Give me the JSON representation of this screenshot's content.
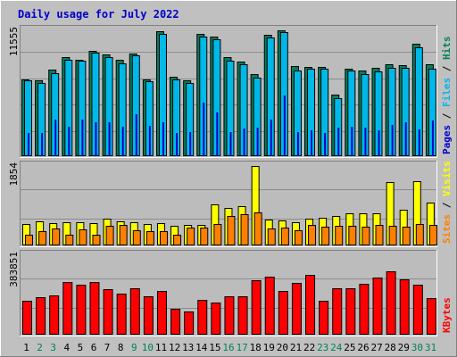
{
  "chart_data": {
    "title": "Daily usage for July 2022",
    "categories": [
      "1",
      "2",
      "3",
      "4",
      "5",
      "6",
      "7",
      "8",
      "9",
      "10",
      "11",
      "12",
      "13",
      "14",
      "15",
      "16",
      "17",
      "18",
      "19",
      "20",
      "21",
      "22",
      "23",
      "24",
      "25",
      "26",
      "27",
      "28",
      "29",
      "30",
      "31"
    ],
    "weekend_days": [
      "2",
      "3",
      "9",
      "10",
      "16",
      "17",
      "23",
      "24",
      "30",
      "31"
    ],
    "colors": {
      "background": "#c0c0c0",
      "plot": "#bcbcbc",
      "title": "#0000cc",
      "hits": "#00805c",
      "files": "#00b8e8",
      "pages": "#0000cc",
      "visits": "#ffff00",
      "sites": "#ff8000",
      "kbytes": "#ff0000",
      "weekday_label": "#000000",
      "weekend_label": "#00805c"
    },
    "panels": [
      {
        "type": "bar",
        "axis_label": "11555",
        "ymax": 11555,
        "legend": [
          "Pages",
          "Files",
          "Hits"
        ],
        "series": [
          {
            "name": "Hits",
            "values": [
              7060,
              6990,
              7990,
              9120,
              8830,
              9660,
              9350,
              8850,
              9460,
              7020,
              11480,
              7320,
              6950,
              11260,
              11010,
              9090,
              8700,
              7520,
              11120,
              11530,
              8240,
              8200,
              8180,
              5620,
              8050,
              7850,
              8110,
              8400,
              8330,
              10290,
              8410
            ]
          },
          {
            "name": "Files",
            "values": [
              6990,
              6700,
              7600,
              8870,
              8750,
              9470,
              9070,
              8530,
              9280,
              6850,
              11200,
              7050,
              6740,
              10990,
              10730,
              8800,
              8470,
              7180,
              10900,
              11430,
              7870,
              8020,
              8020,
              5360,
              7840,
              7550,
              7770,
              8130,
              8100,
              10030,
              8050
            ]
          },
          {
            "name": "Pages",
            "values": [
              2150,
              2100,
              3390,
              2700,
              3400,
              3080,
              3100,
              2700,
              3860,
              2780,
              3120,
              2160,
              2230,
              4880,
              4050,
              2240,
              2540,
              2620,
              3350,
              5540,
              2190,
              2360,
              2100,
              2650,
              2720,
              2630,
              2390,
              2850,
              3150,
              2490,
              3310
            ]
          }
        ]
      },
      {
        "type": "bar",
        "axis_label": "1854",
        "ymax": 1854,
        "legend": [
          "Sites",
          "Visits"
        ],
        "series": [
          {
            "name": "Visits",
            "values": [
              490,
              560,
              520,
              540,
              550,
              530,
              620,
              570,
              540,
              510,
              530,
              460,
              480,
              480,
              960,
              870,
              920,
              1854,
              600,
              590,
              540,
              620,
              640,
              680,
              760,
              760,
              750,
              1470,
              840,
              1490,
              990
            ]
          },
          {
            "name": "Sites",
            "values": [
              240,
              330,
              390,
              250,
              380,
              260,
              460,
              470,
              360,
              330,
              340,
              260,
              410,
              410,
              490,
              680,
              720,
              780,
              390,
              410,
              360,
              470,
              440,
              460,
              460,
              430,
              470,
              460,
              430,
              510,
              470
            ]
          }
        ]
      },
      {
        "type": "bar",
        "axis_label": "383851",
        "ymax": 383851,
        "legend": [
          "KBytes"
        ],
        "series": [
          {
            "name": "KBytes",
            "values": [
              162000,
              181000,
              191000,
              253000,
              241000,
              254000,
              222000,
              199000,
              225000,
              185000,
              213000,
              124000,
              114000,
              169000,
              156000,
              184000,
              184000,
              262000,
              280000,
              212000,
              248000,
              288000,
              166000,
              226000,
              224000,
              244000,
              275000,
              305000,
              268000,
              243000,
              176000
            ]
          }
        ]
      }
    ]
  }
}
